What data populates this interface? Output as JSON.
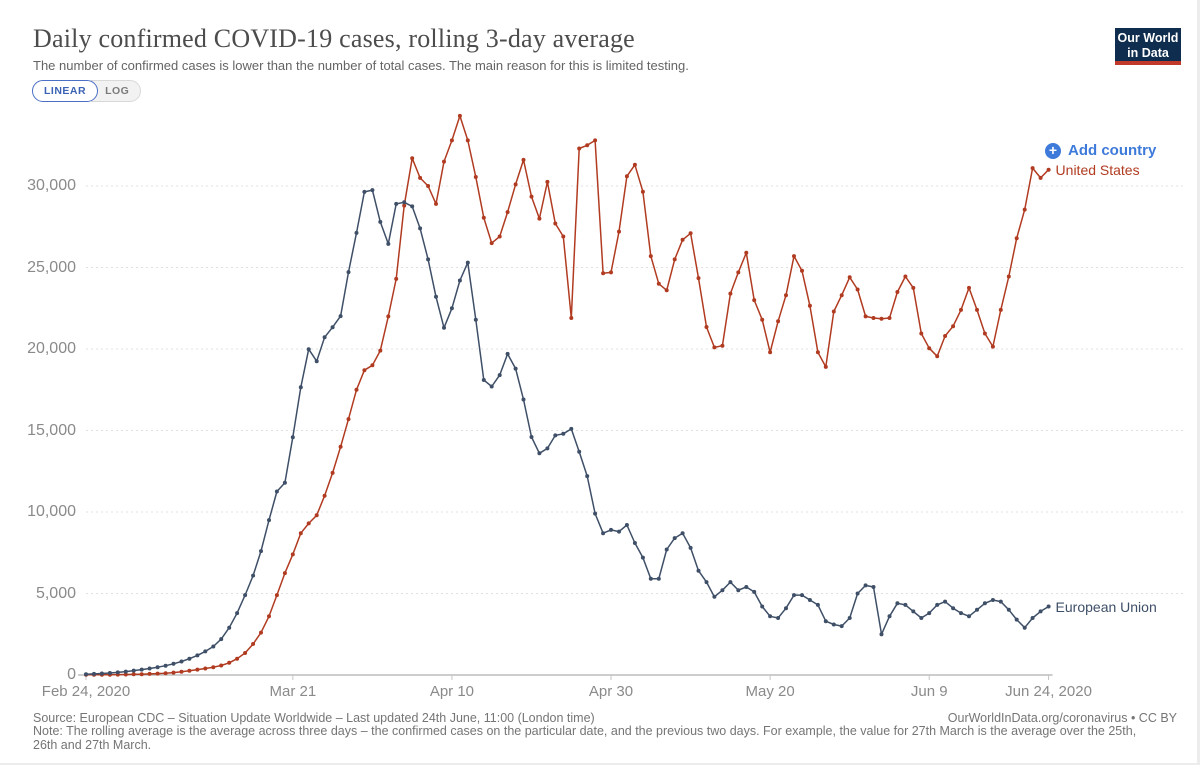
{
  "header": {
    "title": "Daily confirmed COVID-19 cases, rolling 3-day average",
    "subtitle": "The number of confirmed cases is lower than the number of total cases. The main reason for this is limited testing.",
    "logo_line1": "Our World",
    "logo_line2": "in Data"
  },
  "toggle": {
    "linear_label": "LINEAR",
    "log_label": "LOG"
  },
  "add_country": {
    "label": "Add country",
    "icon": "+",
    "color": "#3d7ad9"
  },
  "footer": {
    "source": "Source: European CDC – Situation Update Worldwide – Last updated 24th June, 11:00 (London time)",
    "note": "Note: The rolling average is the average across three days – the confirmed cases on the particular date, and the previous two days. For example, the value for 27th March is the average over the 25th, 26th and 27th March.",
    "attribution": "OurWorldInData.org/coronavirus • CC BY"
  },
  "chart_data": {
    "type": "line",
    "title": "Daily confirmed COVID-19 cases, rolling 3-day average",
    "x_axis": {
      "start_date": "Feb 24, 2020",
      "end_date": "Jun 24, 2020",
      "unit": "days since Feb 24, 2020",
      "ticks": [
        {
          "day": 0,
          "label": "Feb 24, 2020"
        },
        {
          "day": 26,
          "label": "Mar 21"
        },
        {
          "day": 46,
          "label": "Apr 10"
        },
        {
          "day": 66,
          "label": "Apr 30"
        },
        {
          "day": 86,
          "label": "May 20"
        },
        {
          "day": 106,
          "label": "Jun 9"
        },
        {
          "day": 121,
          "label": "Jun 24, 2020"
        }
      ]
    },
    "y_axis": {
      "min": 0,
      "max": 34500,
      "tick_values": [
        0,
        5000,
        10000,
        15000,
        20000,
        25000,
        30000
      ],
      "grid": "dashed"
    },
    "legend_position": "end-of-line",
    "series": [
      {
        "name": "United States",
        "color": "#b13b21",
        "values": [
          20,
          20,
          20,
          20,
          25,
          30,
          40,
          50,
          65,
          85,
          110,
          150,
          200,
          260,
          330,
          400,
          480,
          580,
          750,
          1000,
          1350,
          1900,
          2600,
          3600,
          4900,
          6250,
          7400,
          8700,
          9300,
          9800,
          11000,
          12400,
          14000,
          15700,
          17500,
          18700,
          19000,
          19900,
          22000,
          24300,
          28800,
          31700,
          30500,
          30000,
          28900,
          31500,
          32800,
          34300,
          32800,
          30550,
          28050,
          26500,
          26900,
          28400,
          30100,
          31600,
          29350,
          28000,
          30250,
          27700,
          26900,
          21900,
          32300,
          32500,
          32800,
          24650,
          24700,
          27200,
          30600,
          31300,
          29650,
          25700,
          24000,
          23600,
          25500,
          26700,
          27100,
          24350,
          21350,
          20100,
          20200,
          23400,
          24700,
          25900,
          23000,
          21800,
          19800,
          21700,
          23300,
          25700,
          24800,
          22650,
          19800,
          18900,
          22300,
          23300,
          24400,
          23650,
          22000,
          21900,
          21850,
          21900,
          23500,
          24450,
          23750,
          20950,
          20050,
          19550,
          20800,
          21400,
          22400,
          23750,
          22400,
          20950,
          20150,
          22400,
          24450,
          26800,
          28550,
          31100,
          30500,
          31000
        ]
      },
      {
        "name": "European Union",
        "color": "#3e4f67",
        "values": [
          50,
          70,
          90,
          120,
          160,
          210,
          270,
          330,
          400,
          480,
          570,
          690,
          830,
          1000,
          1200,
          1450,
          1750,
          2200,
          2900,
          3800,
          4900,
          6100,
          7600,
          9500,
          11260,
          11800,
          14580,
          17650,
          19990,
          19250,
          20720,
          21340,
          22020,
          24720,
          27120,
          29640,
          29750,
          27800,
          26450,
          28900,
          29000,
          28750,
          27400,
          25500,
          23200,
          21300,
          22500,
          24200,
          25300,
          21800,
          18100,
          17700,
          18400,
          19700,
          18800,
          16900,
          14600,
          13600,
          13900,
          14700,
          14800,
          15100,
          13700,
          12200,
          9900,
          8700,
          8900,
          8800,
          9200,
          8100,
          7200,
          5900,
          5900,
          7700,
          8400,
          8700,
          7800,
          6400,
          5700,
          4800,
          5200,
          5700,
          5200,
          5400,
          5100,
          4200,
          3600,
          3500,
          4100,
          4900,
          4900,
          4600,
          4300,
          3300,
          3100,
          3000,
          3500,
          5000,
          5500,
          5400,
          2500,
          3600,
          4400,
          4300,
          3900,
          3500,
          3800,
          4300,
          4500,
          4100,
          3800,
          3600,
          4000,
          4400,
          4600,
          4500,
          4000,
          3400,
          2900,
          3500,
          3900,
          4200
        ]
      }
    ]
  }
}
